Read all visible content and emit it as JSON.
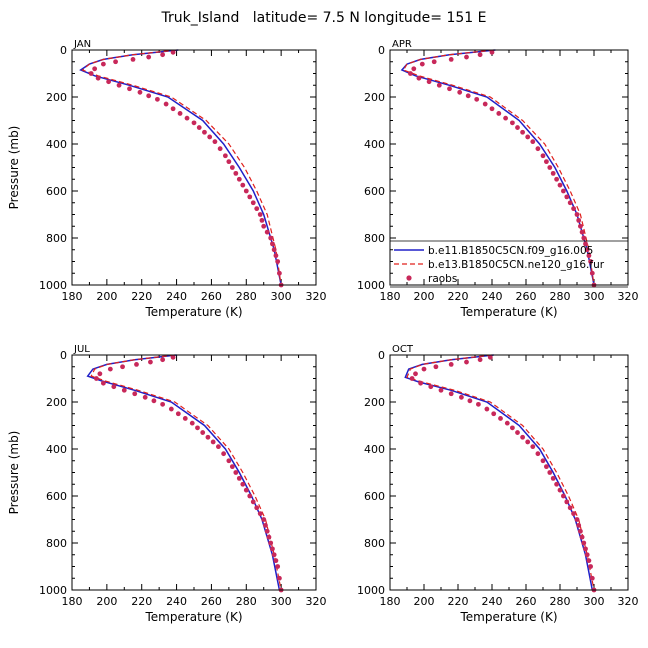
{
  "figure": {
    "title": "Truk_Island   latitude= 7.5 N longitude= 151 E"
  },
  "colors": {
    "model1": "#2020c8",
    "model2": "#e0201c",
    "obs": "#c8285a"
  },
  "chart_data": [
    {
      "type": "line",
      "panel": "JAN",
      "xlabel": "Temperature (K)",
      "ylabel": "Pressure (mb)",
      "xlim": [
        180,
        320
      ],
      "ylim": [
        1000,
        0
      ],
      "xticks": [
        180,
        200,
        220,
        240,
        260,
        280,
        300,
        320
      ],
      "yticks": [
        0,
        200,
        400,
        600,
        800,
        1000
      ],
      "series": [
        {
          "name": "b.e11.B1850C5CN.f09_g16.005",
          "style": "solid",
          "x": [
            241,
            215,
            198,
            190,
            185,
            193,
            213,
            235,
            255,
            267,
            276,
            284,
            290,
            296,
            300
          ],
          "y": [
            0,
            20,
            40,
            60,
            85,
            110,
            150,
            200,
            300,
            400,
            500,
            600,
            700,
            850,
            1000
          ]
        },
        {
          "name": "b.e13.B1850C5CN.ne120_g16.fur",
          "style": "dashed",
          "x": [
            240,
            215,
            198,
            190,
            186,
            195,
            215,
            237,
            257,
            270,
            279,
            286,
            292,
            297,
            300
          ],
          "y": [
            0,
            20,
            40,
            60,
            85,
            110,
            150,
            200,
            300,
            400,
            500,
            600,
            700,
            850,
            1000
          ]
        },
        {
          "name": "raobs",
          "style": "dots",
          "x": [
            238,
            232,
            224,
            215,
            205,
            198,
            193,
            191,
            195,
            201,
            207,
            213,
            219,
            224,
            229,
            234,
            238,
            242,
            246,
            250,
            253,
            256,
            259,
            262,
            265,
            268,
            270,
            272,
            274,
            276,
            278,
            280,
            282,
            284,
            286,
            288,
            289,
            290,
            292,
            294,
            295,
            296,
            297,
            298,
            299,
            300
          ],
          "y": [
            10,
            20,
            30,
            40,
            50,
            60,
            80,
            100,
            120,
            135,
            150,
            165,
            180,
            195,
            210,
            230,
            250,
            270,
            290,
            310,
            330,
            350,
            370,
            390,
            420,
            450,
            475,
            500,
            525,
            550,
            575,
            600,
            625,
            650,
            675,
            700,
            725,
            750,
            775,
            800,
            825,
            850,
            875,
            900,
            950,
            1000
          ]
        }
      ]
    },
    {
      "type": "line",
      "panel": "APR",
      "xlabel": "Temperature (K)",
      "ylabel": "",
      "xlim": [
        180,
        320
      ],
      "ylim": [
        1000,
        0
      ],
      "xticks": [
        180,
        200,
        220,
        240,
        260,
        280,
        300,
        320
      ],
      "yticks": [
        0,
        200,
        400,
        600,
        800,
        1000
      ],
      "legend": {
        "placement": "bottom-right"
      },
      "series": [
        {
          "name": "b.e11.B1850C5CN.f09_g16.005",
          "style": "solid",
          "x": [
            242,
            215,
            198,
            190,
            187,
            195,
            215,
            237,
            256,
            268,
            277,
            284,
            290,
            296,
            300
          ],
          "y": [
            0,
            20,
            40,
            60,
            85,
            110,
            150,
            200,
            300,
            400,
            500,
            600,
            700,
            850,
            1000
          ]
        },
        {
          "name": "b.e13.B1850C5CN.ne120_g16.fur",
          "style": "dashed",
          "x": [
            241,
            215,
            198,
            190,
            188,
            197,
            217,
            239,
            258,
            271,
            279,
            286,
            292,
            297,
            300
          ],
          "y": [
            0,
            20,
            40,
            60,
            85,
            110,
            150,
            200,
            300,
            400,
            500,
            600,
            700,
            850,
            1000
          ]
        },
        {
          "name": "raobs",
          "style": "dots",
          "x": [
            240,
            233,
            225,
            216,
            206,
            199,
            194,
            192,
            197,
            203,
            209,
            215,
            221,
            226,
            231,
            236,
            240,
            244,
            248,
            252,
            255,
            258,
            261,
            264,
            267,
            270,
            272,
            274,
            276,
            278,
            280,
            282,
            284,
            286,
            288,
            290,
            291,
            292,
            293,
            294,
            295,
            296,
            297,
            298,
            299,
            300
          ],
          "y": [
            10,
            20,
            30,
            40,
            50,
            60,
            80,
            100,
            120,
            135,
            150,
            165,
            180,
            195,
            210,
            230,
            250,
            270,
            290,
            310,
            330,
            350,
            370,
            390,
            420,
            450,
            475,
            500,
            525,
            550,
            575,
            600,
            625,
            650,
            675,
            700,
            725,
            750,
            775,
            800,
            825,
            850,
            875,
            900,
            950,
            1000
          ]
        }
      ]
    },
    {
      "type": "line",
      "panel": "JUL",
      "xlabel": "Temperature (K)",
      "ylabel": "Pressure (mb)",
      "xlim": [
        180,
        320
      ],
      "ylim": [
        1000,
        0
      ],
      "xticks": [
        180,
        200,
        220,
        240,
        260,
        280,
        300,
        320
      ],
      "yticks": [
        0,
        200,
        400,
        600,
        800,
        1000
      ],
      "series": [
        {
          "name": "b.e11.B1850C5CN.f09_g16.005",
          "style": "solid",
          "x": [
            240,
            216,
            200,
            192,
            189,
            197,
            216,
            237,
            256,
            268,
            276,
            283,
            289,
            295,
            299
          ],
          "y": [
            0,
            20,
            40,
            60,
            90,
            110,
            150,
            200,
            300,
            400,
            500,
            600,
            700,
            850,
            1000
          ]
        },
        {
          "name": "b.e13.B1850C5CN.ne120_g16.fur",
          "style": "dashed",
          "x": [
            239,
            216,
            200,
            193,
            191,
            199,
            218,
            239,
            258,
            270,
            278,
            285,
            291,
            296,
            300
          ],
          "y": [
            0,
            20,
            40,
            60,
            90,
            110,
            150,
            200,
            300,
            400,
            500,
            600,
            700,
            850,
            1000
          ]
        },
        {
          "name": "raobs",
          "style": "dots",
          "x": [
            238,
            232,
            225,
            217,
            209,
            202,
            196,
            194,
            198,
            204,
            210,
            216,
            222,
            227,
            232,
            237,
            241,
            245,
            249,
            252,
            255,
            258,
            261,
            264,
            267,
            270,
            272,
            274,
            276,
            278,
            280,
            282,
            284,
            286,
            288,
            290,
            291,
            292,
            293,
            294,
            295,
            296,
            297,
            298,
            299,
            300
          ],
          "y": [
            10,
            20,
            30,
            40,
            50,
            60,
            80,
            100,
            120,
            135,
            150,
            165,
            180,
            195,
            210,
            230,
            250,
            270,
            290,
            310,
            330,
            350,
            370,
            390,
            420,
            450,
            475,
            500,
            525,
            550,
            575,
            600,
            625,
            650,
            675,
            700,
            725,
            750,
            775,
            800,
            825,
            850,
            875,
            900,
            950,
            1000
          ]
        }
      ]
    },
    {
      "type": "line",
      "panel": "OCT",
      "xlabel": "Temperature (K)",
      "ylabel": "",
      "xlim": [
        180,
        320
      ],
      "ylim": [
        1000,
        0
      ],
      "xticks": [
        180,
        200,
        220,
        240,
        260,
        280,
        300,
        320
      ],
      "yticks": [
        0,
        200,
        400,
        600,
        800,
        1000
      ],
      "series": [
        {
          "name": "b.e11.B1850C5CN.f09_g16.005",
          "style": "solid",
          "x": [
            241,
            216,
            199,
            191,
            189,
            197,
            216,
            237,
            256,
            268,
            276,
            283,
            289,
            295,
            299
          ],
          "y": [
            0,
            20,
            40,
            60,
            95,
            115,
            150,
            200,
            300,
            400,
            500,
            600,
            700,
            850,
            1000
          ]
        },
        {
          "name": "b.e13.B1850C5CN.ne120_g16.fur",
          "style": "dashed",
          "x": [
            240,
            216,
            199,
            192,
            190,
            199,
            218,
            239,
            258,
            270,
            278,
            285,
            291,
            296,
            300
          ],
          "y": [
            0,
            20,
            40,
            60,
            95,
            115,
            150,
            200,
            300,
            400,
            500,
            600,
            700,
            850,
            1000
          ]
        },
        {
          "name": "raobs",
          "style": "dots",
          "x": [
            239,
            233,
            225,
            216,
            207,
            200,
            195,
            193,
            198,
            204,
            210,
            216,
            222,
            227,
            232,
            237,
            241,
            245,
            249,
            252,
            255,
            258,
            261,
            264,
            267,
            270,
            272,
            274,
            276,
            278,
            280,
            282,
            284,
            286,
            288,
            290,
            291,
            292,
            293,
            294,
            295,
            296,
            297,
            298,
            299,
            300
          ],
          "y": [
            10,
            20,
            30,
            40,
            50,
            60,
            80,
            100,
            120,
            135,
            150,
            165,
            180,
            195,
            210,
            230,
            250,
            270,
            290,
            310,
            330,
            350,
            370,
            390,
            420,
            450,
            475,
            500,
            525,
            550,
            575,
            600,
            625,
            650,
            675,
            700,
            725,
            750,
            775,
            800,
            825,
            850,
            875,
            900,
            950,
            1000
          ]
        }
      ]
    }
  ]
}
